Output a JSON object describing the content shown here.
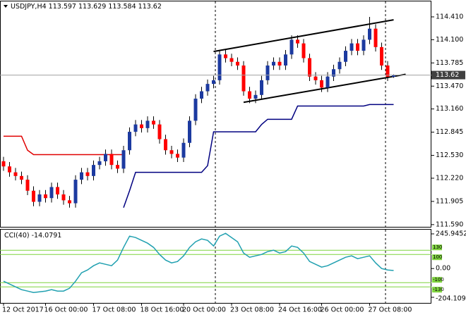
{
  "chart_data": [
    {
      "type": "candlestick",
      "symbol": "USDJPY,H4",
      "ylim": [
        111.56,
        114.62
      ],
      "yticks": [
        {
          "value": 114.41,
          "label": "114.410"
        },
        {
          "value": 114.1,
          "label": "114.100"
        },
        {
          "value": 113.785,
          "label": "113.785"
        },
        {
          "value": 113.47,
          "label": "113.470"
        },
        {
          "value": 113.16,
          "label": "113.160"
        },
        {
          "value": 112.845,
          "label": "112.845"
        },
        {
          "value": 112.53,
          "label": "112.530"
        },
        {
          "value": 112.22,
          "label": "112.220"
        },
        {
          "value": 111.905,
          "label": "111.905"
        },
        {
          "value": 111.59,
          "label": "111.590"
        }
      ],
      "up_color": "#1c3aa0",
      "down_color": "#ff0000",
      "open": [
        112.45,
        112.38,
        112.3,
        112.25,
        112.2,
        112.05,
        111.9,
        112.0,
        111.95,
        112.1,
        112.0,
        111.92,
        111.88,
        112.2,
        112.3,
        112.25,
        112.4,
        112.45,
        112.55,
        112.4,
        112.35,
        112.6,
        112.85,
        112.95,
        112.9,
        113.0,
        112.95,
        112.75,
        112.6,
        112.55,
        112.5,
        112.7,
        113.0,
        113.3,
        113.4,
        113.5,
        113.55,
        113.9,
        113.85,
        113.8,
        113.75,
        113.4,
        113.3,
        113.35,
        113.55,
        113.75,
        113.8,
        113.75,
        113.9,
        114.1,
        114.05,
        113.85,
        113.6,
        113.55,
        113.45,
        113.6,
        113.7,
        113.8,
        113.95,
        114.05,
        113.95,
        114.1,
        114.25,
        114.0,
        113.75,
        113.597
      ],
      "high": [
        112.51,
        112.44,
        112.36,
        112.31,
        112.26,
        112.11,
        112.06,
        112.06,
        112.16,
        112.16,
        112.06,
        111.98,
        112.26,
        112.36,
        112.36,
        112.46,
        112.51,
        112.61,
        112.61,
        112.46,
        112.66,
        112.91,
        113.01,
        113.01,
        113.06,
        113.06,
        113.01,
        112.81,
        112.66,
        112.61,
        112.76,
        113.06,
        113.36,
        113.46,
        113.56,
        113.61,
        113.96,
        113.96,
        113.91,
        113.86,
        113.81,
        113.46,
        113.41,
        113.61,
        113.81,
        113.86,
        113.86,
        113.96,
        114.16,
        114.16,
        114.11,
        113.91,
        113.66,
        113.61,
        113.66,
        113.76,
        113.86,
        114.01,
        114.11,
        114.11,
        114.16,
        114.41,
        114.31,
        114.06,
        113.81,
        113.629
      ],
      "low": [
        112.32,
        112.24,
        112.19,
        112.14,
        111.99,
        111.84,
        111.84,
        111.89,
        111.89,
        111.94,
        111.86,
        111.82,
        111.82,
        112.14,
        112.19,
        112.19,
        112.34,
        112.39,
        112.34,
        112.29,
        112.29,
        112.54,
        112.79,
        112.84,
        112.84,
        112.89,
        112.69,
        112.54,
        112.49,
        112.44,
        112.44,
        112.64,
        112.94,
        113.24,
        113.34,
        113.44,
        113.49,
        113.79,
        113.74,
        113.69,
        113.34,
        113.24,
        113.24,
        113.29,
        113.49,
        113.69,
        113.69,
        113.69,
        113.84,
        113.99,
        113.79,
        113.54,
        113.49,
        113.39,
        113.39,
        113.54,
        113.64,
        113.74,
        113.89,
        113.89,
        113.89,
        114.04,
        113.94,
        113.69,
        113.54,
        113.584
      ],
      "close": [
        112.38,
        112.3,
        112.25,
        112.2,
        112.05,
        111.9,
        112.0,
        111.95,
        112.1,
        112.0,
        111.92,
        111.88,
        112.2,
        112.3,
        112.25,
        112.4,
        112.45,
        112.55,
        112.4,
        112.35,
        112.6,
        112.85,
        112.95,
        112.9,
        113.0,
        112.95,
        112.75,
        112.6,
        112.55,
        112.5,
        112.7,
        113.0,
        113.3,
        113.4,
        113.5,
        113.55,
        113.9,
        113.85,
        113.8,
        113.75,
        113.4,
        113.3,
        113.35,
        113.55,
        113.75,
        113.8,
        113.75,
        113.9,
        114.1,
        114.05,
        113.85,
        113.6,
        113.55,
        113.45,
        113.6,
        113.7,
        113.8,
        113.95,
        114.05,
        113.95,
        114.1,
        114.25,
        114.0,
        113.75,
        113.597,
        113.62
      ],
      "series": [
        {
          "color": "#e00000",
          "values": [
            112.79,
            112.79,
            112.79,
            112.79,
            112.6,
            112.54,
            112.54,
            112.54,
            112.54,
            112.54,
            112.54,
            112.54,
            112.54,
            112.54,
            112.54,
            112.54,
            112.54,
            112.54,
            112.54,
            112.54,
            112.54,
            null,
            null,
            null,
            null,
            null,
            null,
            null,
            null,
            null,
            null,
            null,
            null,
            null,
            null,
            null,
            null,
            null,
            null,
            null,
            null,
            null,
            null,
            null,
            null,
            null,
            null,
            null,
            null,
            null,
            null,
            null,
            null,
            null,
            null,
            null,
            null,
            null,
            null,
            null,
            null,
            null,
            null,
            null,
            null,
            null
          ]
        },
        {
          "color": "#000080",
          "values": [
            null,
            null,
            null,
            null,
            null,
            null,
            null,
            null,
            null,
            null,
            null,
            null,
            null,
            null,
            null,
            null,
            null,
            null,
            null,
            null,
            111.82,
            112.05,
            112.3,
            112.3,
            112.3,
            112.3,
            112.3,
            112.3,
            112.3,
            112.3,
            112.3,
            112.3,
            112.3,
            112.3,
            112.39,
            112.85,
            112.85,
            112.85,
            112.85,
            112.85,
            112.85,
            112.85,
            112.85,
            112.95,
            113.02,
            113.02,
            113.02,
            113.02,
            113.02,
            113.2,
            113.2,
            113.2,
            113.2,
            113.2,
            113.2,
            113.2,
            113.2,
            113.2,
            113.2,
            113.2,
            113.2,
            113.22,
            113.22,
            113.22,
            113.22,
            113.22
          ]
        }
      ],
      "trendlines": [
        {
          "x": [
            35,
            65
          ],
          "y": [
            113.94,
            114.37
          ]
        },
        {
          "x": [
            40,
            67
          ],
          "y": [
            113.25,
            113.63
          ]
        }
      ],
      "x_labels": {
        "index": [
          0,
          7,
          15,
          23,
          30,
          38,
          46,
          53,
          61
        ],
        "labels": [
          "12 Oct 2017",
          "16 Oct 00:00",
          "17 Oct 08:00",
          "18 Oct 16:00",
          "20 Oct 00:00",
          "23 Oct 08:00",
          "24 Oct 16:00",
          "26 Oct 00:00",
          "27 Oct 08:00"
        ]
      }
    },
    {
      "type": "line",
      "name": "CCI(40)",
      "color": "#20a0b0",
      "level_color": "#7fd33f",
      "ylim": [
        -244,
        276
      ],
      "yticks": [
        245.9452,
        {
          "value": 0,
          "label": "0.00"
        },
        -204.1093
      ],
      "levels": [
        130,
        100,
        -100,
        -130
      ],
      "values": [
        -90,
        -110,
        -130,
        -150,
        -160,
        -170,
        -165,
        -160,
        -150,
        -160,
        -160,
        -140,
        -90,
        -30,
        -10,
        20,
        40,
        30,
        20,
        60,
        150,
        230,
        220,
        200,
        180,
        150,
        100,
        60,
        40,
        50,
        90,
        150,
        190,
        210,
        200,
        160,
        230,
        250,
        220,
        190,
        110,
        80,
        90,
        100,
        120,
        130,
        110,
        120,
        160,
        150,
        110,
        50,
        30,
        10,
        20,
        40,
        60,
        80,
        90,
        70,
        80,
        90,
        40,
        0,
        -10,
        -14.0791
      ]
    }
  ]
}
